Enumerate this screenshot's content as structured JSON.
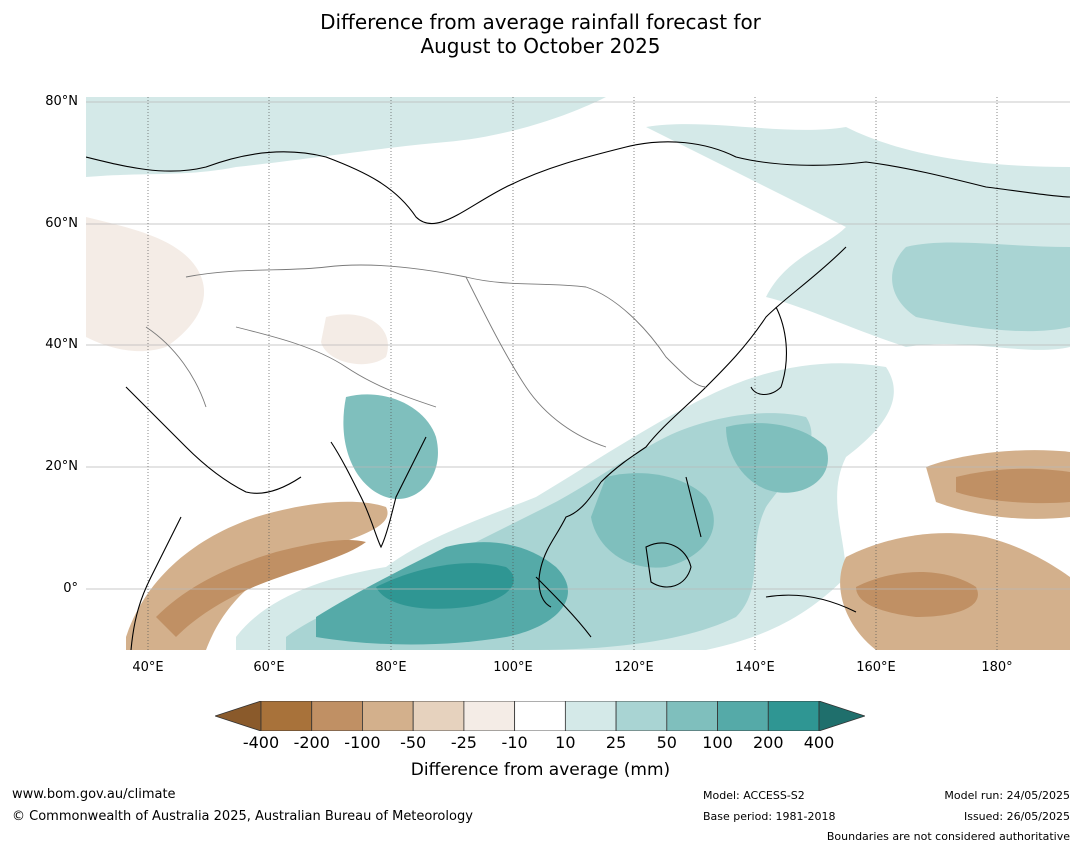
{
  "title_line1": "Difference from average rainfall forecast for",
  "title_line2": "August to October 2025",
  "map": {
    "lat_labels": [
      "80°N",
      "60°N",
      "40°N",
      "20°N",
      "0°"
    ],
    "lon_labels": [
      "40°E",
      "60°E",
      "80°E",
      "100°E",
      "120°E",
      "140°E",
      "160°E",
      "180°"
    ]
  },
  "colorbar": {
    "ticks": [
      "-400",
      "-200",
      "-100",
      "-50",
      "-25",
      "-10",
      "10",
      "25",
      "50",
      "100",
      "200",
      "400"
    ],
    "colors": [
      "#8a5a2b",
      "#a8723a",
      "#c09064",
      "#d3b08c",
      "#e6d2be",
      "#f4ece6",
      "#ffffff",
      "#d4e9e8",
      "#a9d4d3",
      "#7fbfbd",
      "#55aaa8",
      "#2f9693",
      "#1f6f6c"
    ],
    "label": "Difference from average (mm)"
  },
  "footer": {
    "website": "www.bom.gov.au/climate",
    "copyright": "© Commonwealth of Australia 2025, Australian Bureau of Meteorology",
    "model": "Model: ACCESS-S2",
    "base_period": "Base period: 1981-2018",
    "model_run": "Model run: 24/05/2025",
    "issued": "Issued: 26/05/2025",
    "disclaimer": "Boundaries are not considered authoritative"
  }
}
